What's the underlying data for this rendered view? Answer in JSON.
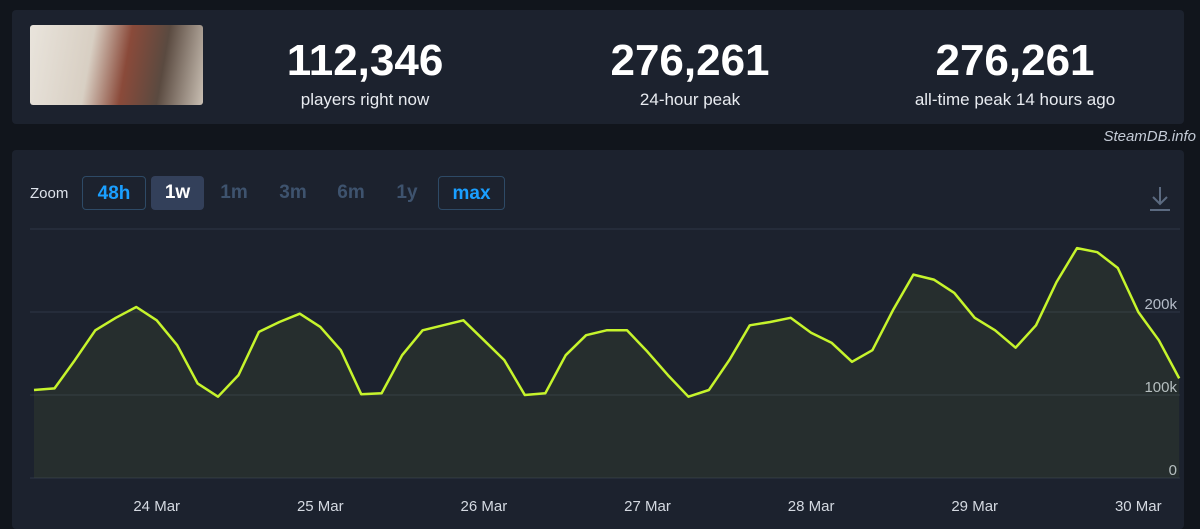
{
  "header": {
    "stats": [
      {
        "value": "112,346",
        "label": "players right now"
      },
      {
        "value": "276,261",
        "label": "24-hour peak"
      },
      {
        "value": "276,261",
        "label": "all-time peak 14 hours ago"
      }
    ],
    "watermark": "SteamDB.info"
  },
  "zoom": {
    "label": "Zoom",
    "buttons": [
      "48h",
      "1w",
      "1m",
      "3m",
      "6m",
      "1y",
      "max"
    ]
  },
  "chart_data": {
    "type": "line",
    "color": "#c6f42c",
    "grid": true,
    "categories": [
      null,
      null,
      null,
      null,
      null,
      null,
      "24 Mar",
      null,
      null,
      null,
      null,
      null,
      null,
      null,
      "25 Mar",
      null,
      null,
      null,
      null,
      null,
      null,
      null,
      "26 Mar",
      null,
      null,
      null,
      null,
      null,
      null,
      null,
      "27 Mar",
      null,
      null,
      null,
      null,
      null,
      null,
      null,
      "28 Mar",
      null,
      null,
      null,
      null,
      null,
      null,
      null,
      "29 Mar",
      null,
      null,
      null,
      null,
      null,
      null,
      null,
      "30 Mar",
      null,
      null
    ],
    "values": [
      106000,
      108000,
      142000,
      178000,
      193000,
      206000,
      190000,
      160000,
      114000,
      98000,
      124000,
      176000,
      188000,
      198000,
      182000,
      154000,
      101000,
      102000,
      148000,
      178000,
      184000,
      190000,
      166000,
      142000,
      100000,
      102000,
      148000,
      172000,
      178000,
      178000,
      152000,
      124000,
      98000,
      106000,
      142000,
      184000,
      188000,
      193000,
      175000,
      163000,
      140000,
      154000,
      202000,
      245000,
      239000,
      223000,
      193000,
      178000,
      157000,
      184000,
      236000,
      277000,
      272000,
      253000,
      200000,
      166000,
      120000
    ],
    "ylim": [
      0,
      300000
    ],
    "yticks": [
      0,
      {
        "value": 100000,
        "label": "100k"
      },
      {
        "value": 200000,
        "label": "200k"
      }
    ]
  }
}
